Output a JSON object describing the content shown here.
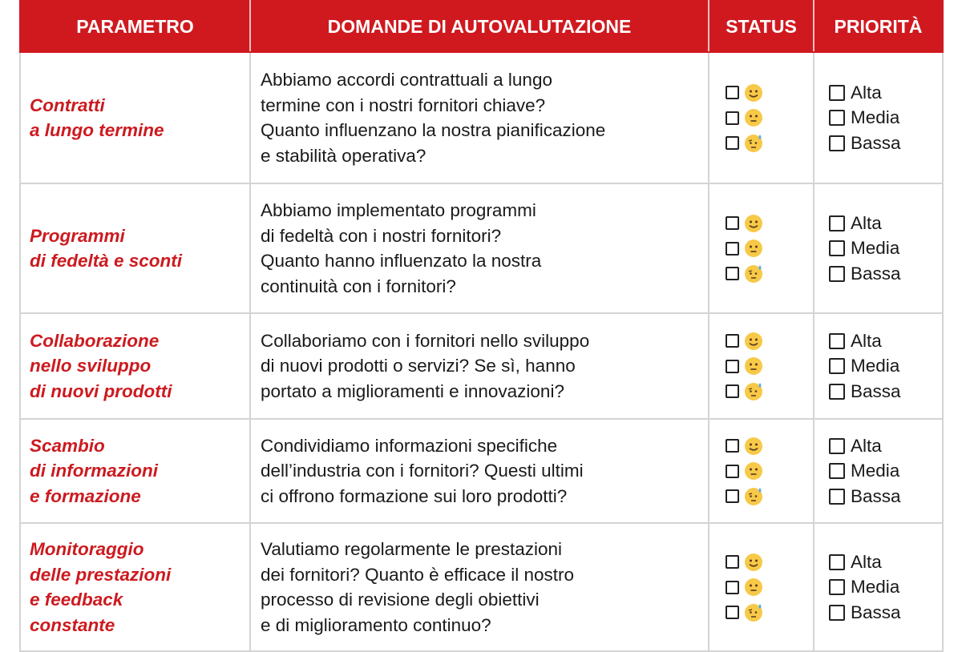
{
  "headers": [
    "PARAMETRO",
    "DOMANDE DI AUTOVALUTAZIONE",
    "STATUS",
    "PRIORITÀ"
  ],
  "status_icons": [
    "smiling-face-icon",
    "neutral-face-icon",
    "anxious-sweat-face-icon"
  ],
  "priority_options": [
    "Alta",
    "Media",
    "Bassa"
  ],
  "colors": {
    "header_bg": "#d0191f",
    "parameter_text": "#cc1a1f"
  },
  "rows": [
    {
      "parameter": [
        "Contratti",
        "a lungo termine"
      ],
      "questions": [
        "Abbiamo accordi contrattuali a lungo",
        "termine con i nostri fornitori chiave?",
        "Quanto influenzano la nostra pianificazione",
        "e stabilità operativa?"
      ]
    },
    {
      "parameter": [
        "Programmi",
        "di fedeltà e sconti"
      ],
      "questions": [
        "Abbiamo implementato programmi",
        "di fedeltà con i nostri fornitori?",
        "Quanto hanno influenzato la nostra",
        "continuità con i fornitori?"
      ]
    },
    {
      "parameter": [
        "Collaborazione",
        "nello sviluppo",
        "di nuovi prodotti"
      ],
      "questions": [
        "Collaboriamo con i fornitori nello sviluppo",
        "di nuovi prodotti o servizi? Se sì, hanno",
        "portato a miglioramenti e innovazioni?"
      ]
    },
    {
      "parameter": [
        "Scambio",
        "di informazioni",
        "e formazione"
      ],
      "questions": [
        "Condividiamo informazioni specifiche",
        "dell’industria con i fornitori? Questi ultimi",
        "ci offrono formazione sui loro prodotti?"
      ]
    },
    {
      "parameter": [
        "Monitoraggio",
        "delle prestazioni",
        "e feedback",
        "constante"
      ],
      "questions": [
        "Valutiamo regolarmente le prestazioni",
        "dei fornitori? Quanto è efficace il nostro",
        "processo di revisione degli obiettivi",
        "e di miglioramento continuo?"
      ]
    }
  ]
}
